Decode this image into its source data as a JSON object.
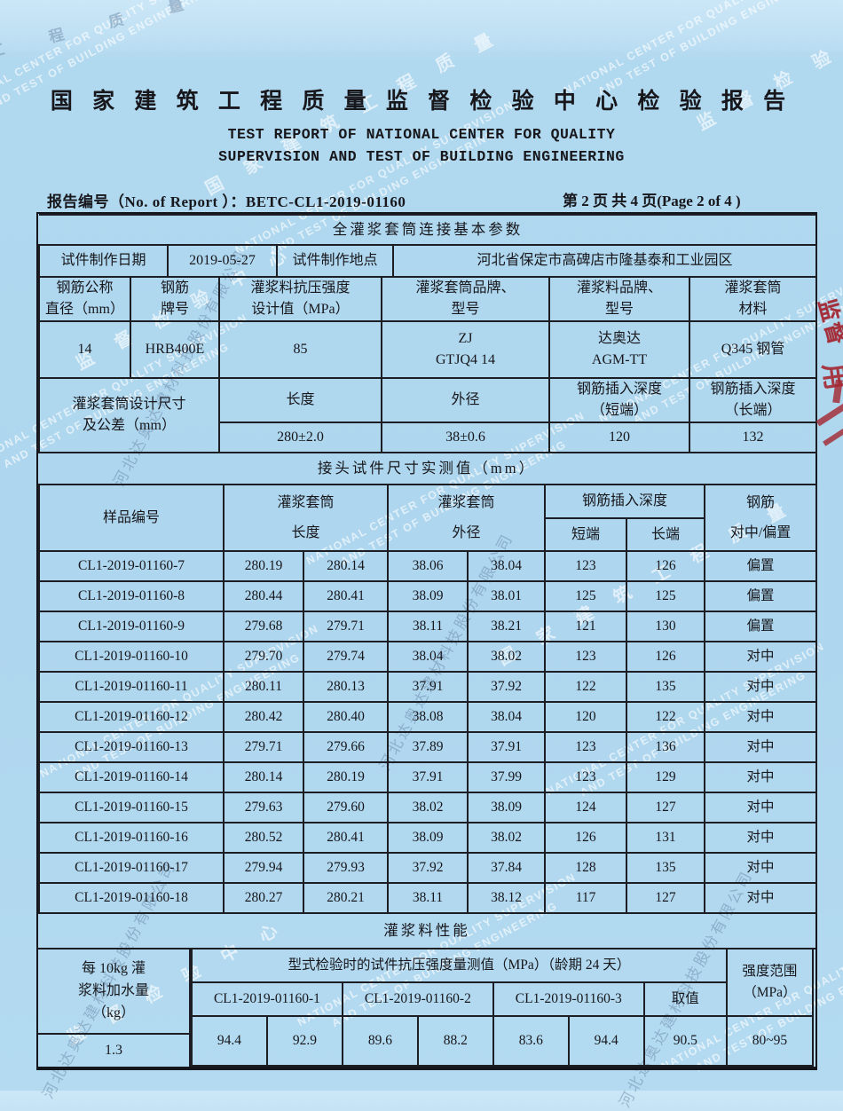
{
  "header": {
    "title_cn": "国 家 建 筑 工 程 质 量 监 督 检 验 中 心 检 验 报 告",
    "title_en1": "TEST REPORT OF NATIONAL CENTER FOR QUALITY",
    "title_en2": "SUPERVISION AND TEST OF BUILDING ENGINEERING",
    "report_no": "报告编号（No. of Report ）：BETC-CL1-2019-01160",
    "page_info": "第 2 页 共 4 页(Page 2 of 4 )"
  },
  "basic": {
    "section_title": "全灌浆套筒连接基本参数",
    "date_label": "试件制作日期",
    "date_value": "2019-05-27",
    "place_label": "试件制作地点",
    "place_value": "河北省保定市高碑店市隆基泰和工业园区",
    "headers": [
      {
        "l1": "钢筋公称",
        "l2": "直径（mm）"
      },
      {
        "l1": "钢筋",
        "l2": "牌号"
      },
      {
        "l1": "灌浆料抗压强度",
        "l2": "设计值（MPa）"
      },
      {
        "l1": "灌浆套筒品牌、",
        "l2": "型号"
      },
      {
        "l1": "灌浆料品牌、",
        "l2": "型号"
      },
      {
        "l1": "灌浆套筒",
        "l2": "材料"
      }
    ],
    "values": [
      {
        "l1": "14",
        "l2": ""
      },
      {
        "l1": "HRB400E",
        "l2": ""
      },
      {
        "l1": "85",
        "l2": ""
      },
      {
        "l1": "ZJ",
        "l2": "GTJQ4 14"
      },
      {
        "l1": "达奥达",
        "l2": "AGM-TT"
      },
      {
        "l1": "Q345 钢管",
        "l2": ""
      }
    ],
    "design_label_l1": "灌浆套筒设计尺寸",
    "design_label_l2": "及公差（mm）",
    "design_cols": [
      {
        "h1": "长度",
        "h2": "",
        "v": "280±2.0"
      },
      {
        "h1": "外径",
        "h2": "",
        "v": "38±0.6"
      },
      {
        "h1": "钢筋插入深度",
        "h2": "（短端）",
        "v": "120"
      },
      {
        "h1": "钢筋插入深度",
        "h2": "（长端）",
        "v": "132"
      }
    ]
  },
  "measured": {
    "section_title": "接头试件尺寸实测值（mm）",
    "col_sample": "样品编号",
    "col_sleeve": "灌浆套筒",
    "col_len": "长度",
    "col_dia": "外径",
    "col_depth": "钢筋插入深度",
    "col_short": "短端",
    "col_long": "长端",
    "col_rebar": "钢筋",
    "col_align": "对中/偏置",
    "rows": [
      [
        "CL1-2019-01160-7",
        "280.19",
        "280.14",
        "38.06",
        "38.04",
        "123",
        "126",
        "偏置"
      ],
      [
        "CL1-2019-01160-8",
        "280.44",
        "280.41",
        "38.09",
        "38.01",
        "125",
        "125",
        "偏置"
      ],
      [
        "CL1-2019-01160-9",
        "279.68",
        "279.71",
        "38.11",
        "38.21",
        "121",
        "130",
        "偏置"
      ],
      [
        "CL1-2019-01160-10",
        "279.70",
        "279.74",
        "38.04",
        "38.02",
        "123",
        "126",
        "对中"
      ],
      [
        "CL1-2019-01160-11",
        "280.11",
        "280.13",
        "37.91",
        "37.92",
        "122",
        "135",
        "对中"
      ],
      [
        "CL1-2019-01160-12",
        "280.42",
        "280.40",
        "38.08",
        "38.04",
        "120",
        "122",
        "对中"
      ],
      [
        "CL1-2019-01160-13",
        "279.71",
        "279.66",
        "37.89",
        "37.91",
        "123",
        "136",
        "对中"
      ],
      [
        "CL1-2019-01160-14",
        "280.14",
        "280.19",
        "37.91",
        "37.99",
        "123",
        "129",
        "对中"
      ],
      [
        "CL1-2019-01160-15",
        "279.63",
        "279.60",
        "38.02",
        "38.09",
        "124",
        "127",
        "对中"
      ],
      [
        "CL1-2019-01160-16",
        "280.52",
        "280.41",
        "38.09",
        "38.02",
        "126",
        "131",
        "对中"
      ],
      [
        "CL1-2019-01160-17",
        "279.94",
        "279.93",
        "37.92",
        "37.84",
        "128",
        "135",
        "对中"
      ],
      [
        "CL1-2019-01160-18",
        "280.27",
        "280.21",
        "38.11",
        "38.12",
        "117",
        "127",
        "对中"
      ]
    ]
  },
  "grout": {
    "section_title": "灌浆料性能",
    "water_l1": "每 10kg 灌",
    "water_l2": "浆料加水量",
    "water_l3": "（kg）",
    "water_value": "1.3",
    "header": "型式检验时的试件抗压强度量测值（MPa）（龄期 24 天）",
    "samples": [
      "CL1-2019-01160-1",
      "CL1-2019-01160-2",
      "CL1-2019-01160-3"
    ],
    "take_label": "取值",
    "values": [
      "94.4",
      "92.9",
      "89.6",
      "88.2",
      "83.6",
      "94.4"
    ],
    "take_value": "90.5",
    "range_l1": "强度范围",
    "range_l2": "（MPa）",
    "range_value": "80~95"
  },
  "watermarks": {
    "en1": "NATIONAL CENTER FOR QUALITY SUPERVISION",
    "en2": "AND TEST OF BUILDING ENGINEERING",
    "cn1": "国 家 建 筑 工 程 质 量",
    "cn2": "监 督 检 验 中 心",
    "cn3": "工 程 质 量 监 督",
    "company": "河北达奥达建材科技股份有限公司"
  },
  "stamp": {
    "fragment_top": "监督",
    "fragment_mid": "用",
    "color": "#a42a34"
  },
  "colors": {
    "paper_blue": "#aed6ee",
    "ink": "#1d1e24",
    "stamp_red": "#a42a34",
    "watermark_white": "#e8f4fb",
    "watermark_dark": "#5872a0"
  }
}
